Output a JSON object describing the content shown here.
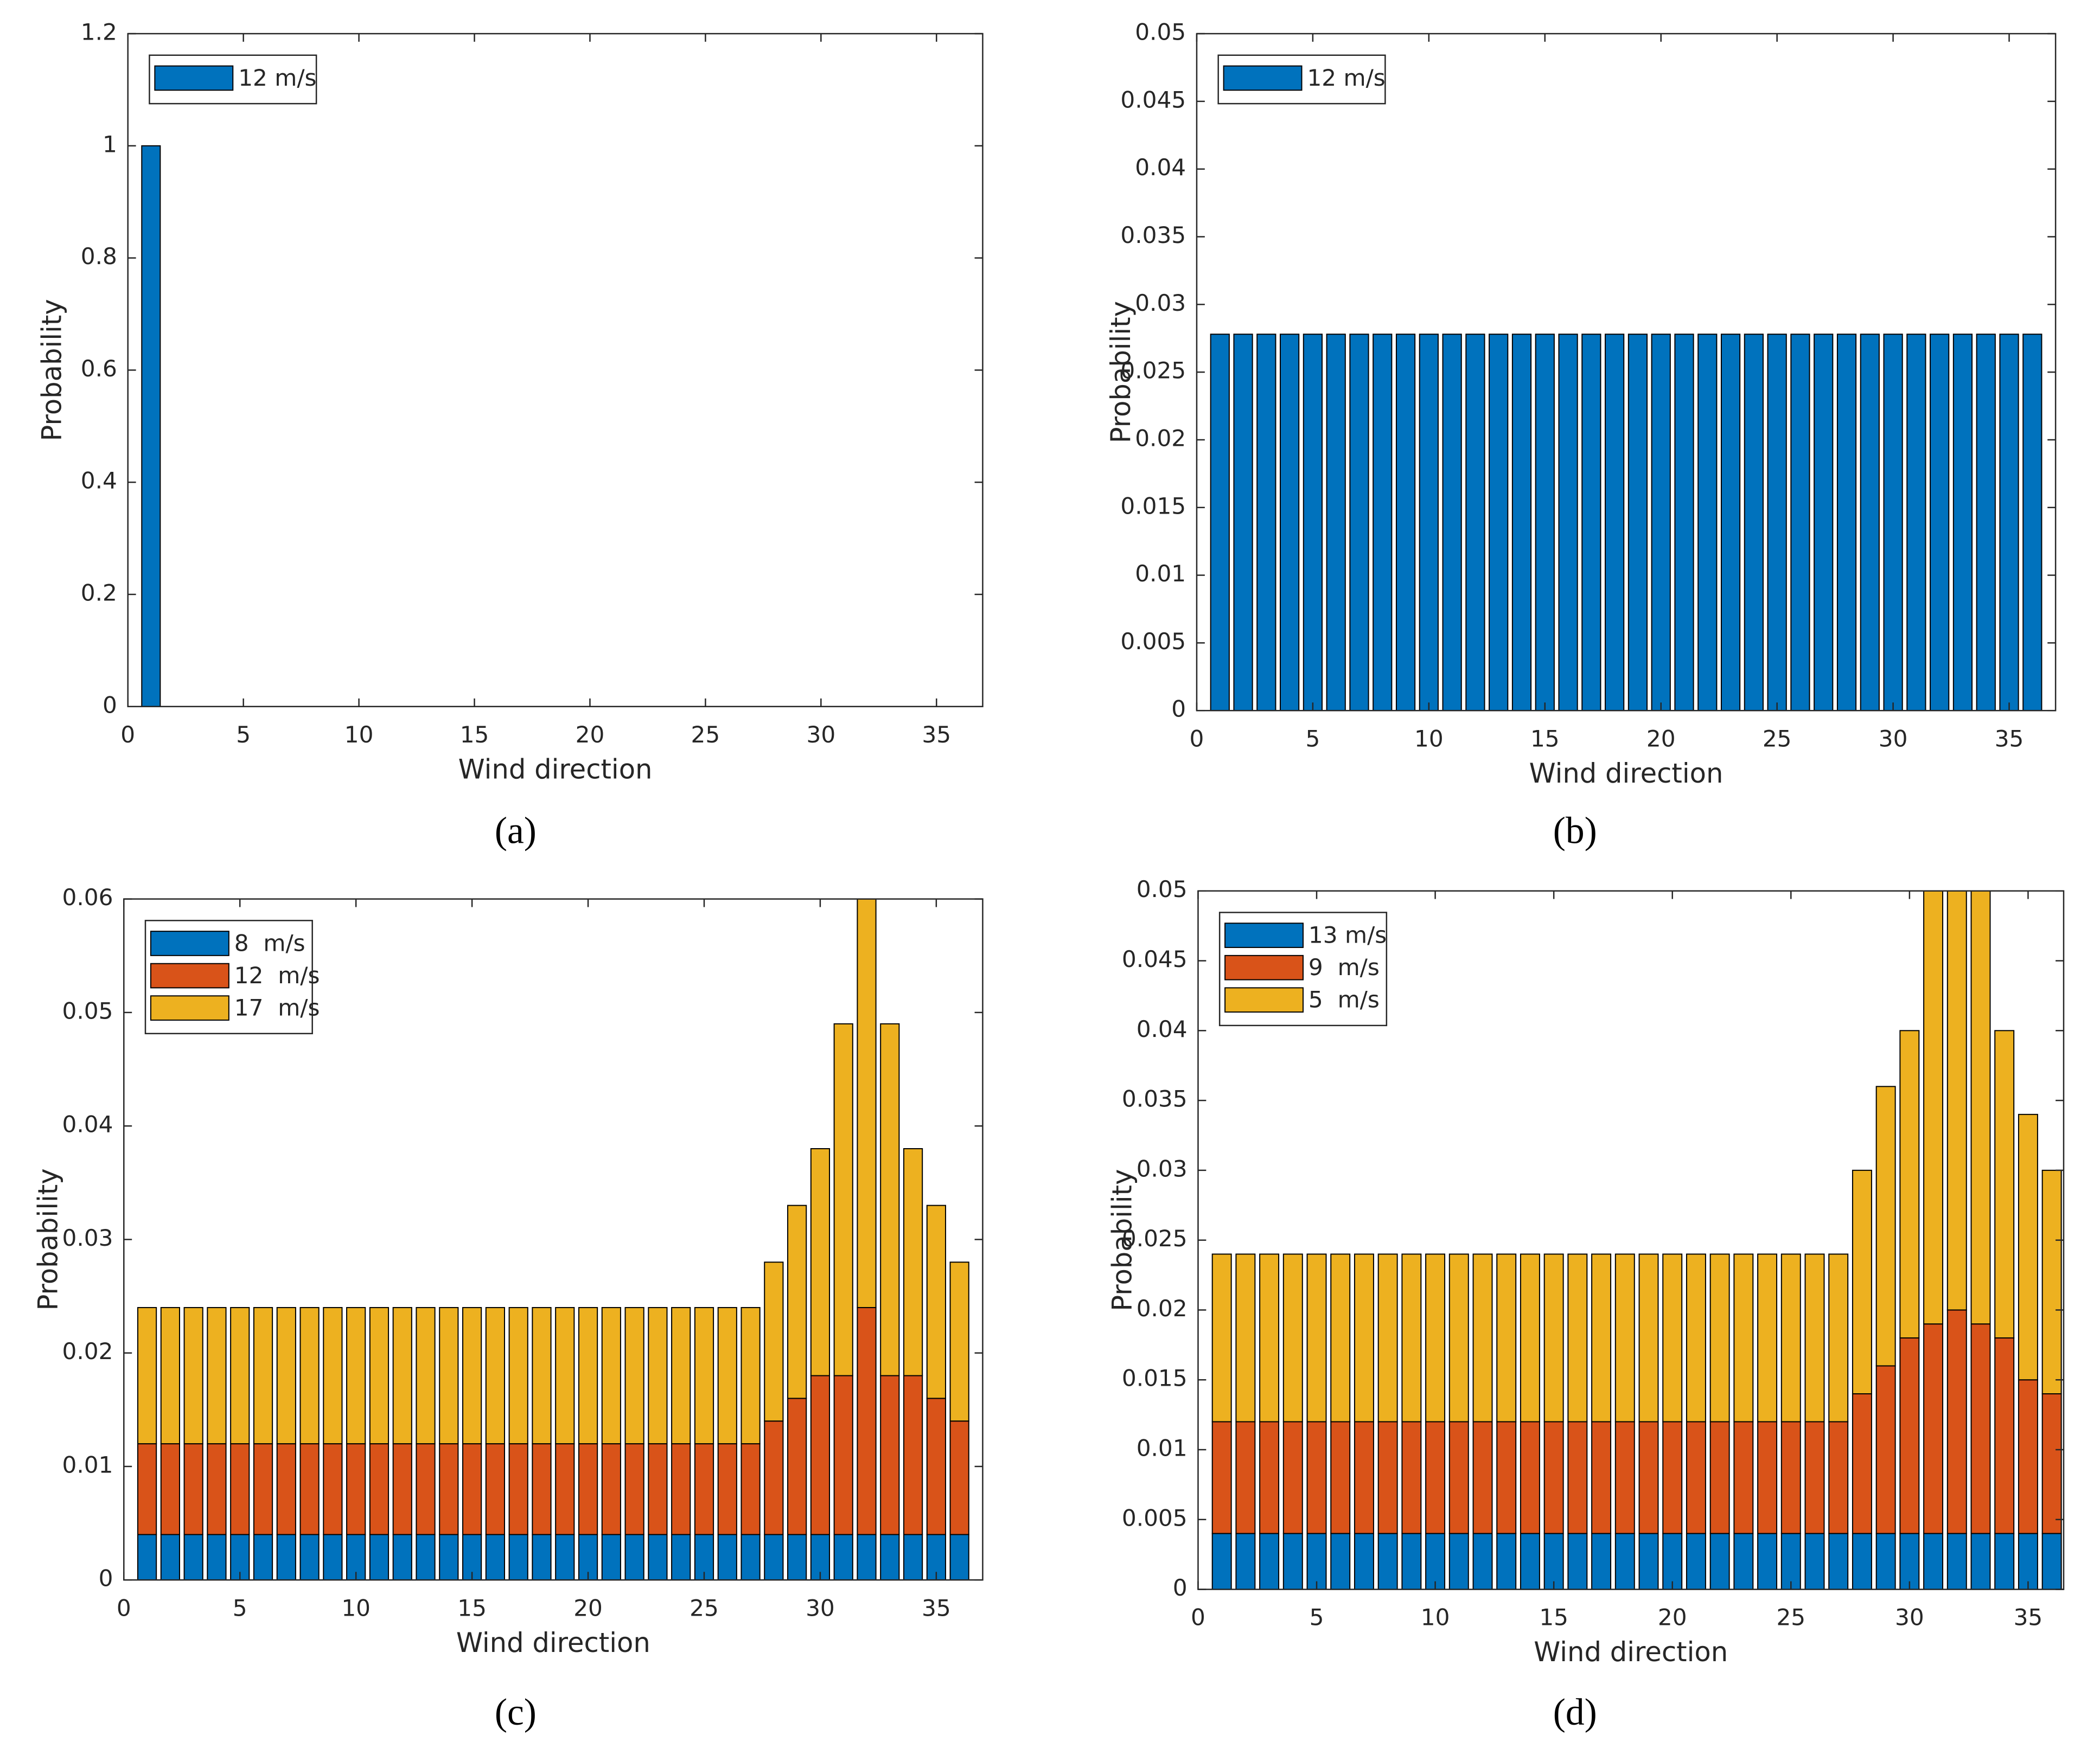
{
  "chart_data": [
    {
      "type": "bar",
      "stacked": true,
      "caption": "(a)",
      "xlabel": "Wind direction",
      "ylabel": "Probability",
      "x": [
        1,
        2,
        3,
        4,
        5,
        6,
        7,
        8,
        9,
        10,
        11,
        12,
        13,
        14,
        15,
        16,
        17,
        18,
        19,
        20,
        21,
        22,
        23,
        24,
        25,
        26,
        27,
        28,
        29,
        30,
        31,
        32,
        33,
        34,
        35,
        36
      ],
      "series": [
        {
          "name": "12 m/s",
          "color": "#0072BD",
          "values": [
            1,
            0,
            0,
            0,
            0,
            0,
            0,
            0,
            0,
            0,
            0,
            0,
            0,
            0,
            0,
            0,
            0,
            0,
            0,
            0,
            0,
            0,
            0,
            0,
            0,
            0,
            0,
            0,
            0,
            0,
            0,
            0,
            0,
            0,
            0,
            0
          ]
        }
      ],
      "xlim": [
        0,
        37
      ],
      "xticks": [
        0,
        5,
        10,
        15,
        20,
        25,
        30,
        35
      ],
      "ylim": [
        0,
        1.2
      ],
      "yticks": [
        0,
        0.2,
        0.4,
        0.6,
        0.8,
        1,
        1.2
      ],
      "legend": "upper left"
    },
    {
      "type": "bar",
      "stacked": true,
      "caption": "(b)",
      "xlabel": "Wind direction",
      "ylabel": "Probability",
      "x": [
        1,
        2,
        3,
        4,
        5,
        6,
        7,
        8,
        9,
        10,
        11,
        12,
        13,
        14,
        15,
        16,
        17,
        18,
        19,
        20,
        21,
        22,
        23,
        24,
        25,
        26,
        27,
        28,
        29,
        30,
        31,
        32,
        33,
        34,
        35,
        36
      ],
      "series": [
        {
          "name": "12 m/s",
          "color": "#0072BD",
          "values": [
            0.0278,
            0.0278,
            0.0278,
            0.0278,
            0.0278,
            0.0278,
            0.0278,
            0.0278,
            0.0278,
            0.0278,
            0.0278,
            0.0278,
            0.0278,
            0.0278,
            0.0278,
            0.0278,
            0.0278,
            0.0278,
            0.0278,
            0.0278,
            0.0278,
            0.0278,
            0.0278,
            0.0278,
            0.0278,
            0.0278,
            0.0278,
            0.0278,
            0.0278,
            0.0278,
            0.0278,
            0.0278,
            0.0278,
            0.0278,
            0.0278,
            0.0278
          ]
        }
      ],
      "xlim": [
        0,
        37
      ],
      "xticks": [
        0,
        5,
        10,
        15,
        20,
        25,
        30,
        35
      ],
      "ylim": [
        0,
        0.05
      ],
      "yticks": [
        0,
        0.005,
        0.01,
        0.015,
        0.02,
        0.025,
        0.03,
        0.035,
        0.04,
        0.045,
        0.05
      ],
      "legend": "upper left"
    },
    {
      "type": "bar",
      "stacked": true,
      "caption": "(c)",
      "xlabel": "Wind direction",
      "ylabel": "Probability",
      "x": [
        1,
        2,
        3,
        4,
        5,
        6,
        7,
        8,
        9,
        10,
        11,
        12,
        13,
        14,
        15,
        16,
        17,
        18,
        19,
        20,
        21,
        22,
        23,
        24,
        25,
        26,
        27,
        28,
        29,
        30,
        31,
        32,
        33,
        34,
        35,
        36
      ],
      "series": [
        {
          "name": "8  m/s",
          "color": "#0072BD",
          "values": [
            0.004,
            0.004,
            0.004,
            0.004,
            0.004,
            0.004,
            0.004,
            0.004,
            0.004,
            0.004,
            0.004,
            0.004,
            0.004,
            0.004,
            0.004,
            0.004,
            0.004,
            0.004,
            0.004,
            0.004,
            0.004,
            0.004,
            0.004,
            0.004,
            0.004,
            0.004,
            0.004,
            0.004,
            0.004,
            0.004,
            0.004,
            0.004,
            0.004,
            0.004,
            0.004,
            0.004
          ]
        },
        {
          "name": "12  m/s",
          "color": "#D95319",
          "values": [
            0.008,
            0.008,
            0.008,
            0.008,
            0.008,
            0.008,
            0.008,
            0.008,
            0.008,
            0.008,
            0.008,
            0.008,
            0.008,
            0.008,
            0.008,
            0.008,
            0.008,
            0.008,
            0.008,
            0.008,
            0.008,
            0.008,
            0.008,
            0.008,
            0.008,
            0.008,
            0.008,
            0.01,
            0.012,
            0.014,
            0.014,
            0.02,
            0.014,
            0.014,
            0.012,
            0.01
          ]
        },
        {
          "name": "17  m/s",
          "color": "#EDB120",
          "values": [
            0.012,
            0.012,
            0.012,
            0.012,
            0.012,
            0.012,
            0.012,
            0.012,
            0.012,
            0.012,
            0.012,
            0.012,
            0.012,
            0.012,
            0.012,
            0.012,
            0.012,
            0.012,
            0.012,
            0.012,
            0.012,
            0.012,
            0.012,
            0.012,
            0.012,
            0.012,
            0.012,
            0.014,
            0.017,
            0.02,
            0.031,
            0.036,
            0.031,
            0.02,
            0.017,
            0.014
          ]
        }
      ],
      "xlim": [
        0,
        37
      ],
      "xticks": [
        0,
        5,
        10,
        15,
        20,
        25,
        30,
        35
      ],
      "ylim": [
        0,
        0.06
      ],
      "yticks": [
        0,
        0.01,
        0.02,
        0.03,
        0.04,
        0.05,
        0.06
      ],
      "legend": "upper left"
    },
    {
      "type": "bar",
      "stacked": true,
      "caption": "(d)",
      "xlabel": "Wind direction",
      "ylabel": "Probability",
      "x": [
        1,
        2,
        3,
        4,
        5,
        6,
        7,
        8,
        9,
        10,
        11,
        12,
        13,
        14,
        15,
        16,
        17,
        18,
        19,
        20,
        21,
        22,
        23,
        24,
        25,
        26,
        27,
        28,
        29,
        30,
        31,
        32,
        33,
        34,
        35,
        36
      ],
      "series": [
        {
          "name": "13 m/s",
          "color": "#0072BD",
          "values": [
            0.004,
            0.004,
            0.004,
            0.004,
            0.004,
            0.004,
            0.004,
            0.004,
            0.004,
            0.004,
            0.004,
            0.004,
            0.004,
            0.004,
            0.004,
            0.004,
            0.004,
            0.004,
            0.004,
            0.004,
            0.004,
            0.004,
            0.004,
            0.004,
            0.004,
            0.004,
            0.004,
            0.004,
            0.004,
            0.004,
            0.004,
            0.004,
            0.004,
            0.004,
            0.004,
            0.004
          ]
        },
        {
          "name": "9  m/s",
          "color": "#D95319",
          "values": [
            0.008,
            0.008,
            0.008,
            0.008,
            0.008,
            0.008,
            0.008,
            0.008,
            0.008,
            0.008,
            0.008,
            0.008,
            0.008,
            0.008,
            0.008,
            0.008,
            0.008,
            0.008,
            0.008,
            0.008,
            0.008,
            0.008,
            0.008,
            0.008,
            0.008,
            0.008,
            0.008,
            0.01,
            0.012,
            0.014,
            0.015,
            0.016,
            0.015,
            0.014,
            0.011,
            0.01
          ]
        },
        {
          "name": "5  m/s",
          "color": "#EDB120",
          "values": [
            0.012,
            0.012,
            0.012,
            0.012,
            0.012,
            0.012,
            0.012,
            0.012,
            0.012,
            0.012,
            0.012,
            0.012,
            0.012,
            0.012,
            0.012,
            0.012,
            0.012,
            0.012,
            0.012,
            0.012,
            0.012,
            0.012,
            0.012,
            0.012,
            0.012,
            0.012,
            0.012,
            0.016,
            0.02,
            0.022,
            0.031,
            0.03,
            0.031,
            0.022,
            0.019,
            0.016
          ]
        }
      ],
      "xlim": [
        0,
        36.5
      ],
      "xticks": [
        0,
        5,
        10,
        15,
        20,
        25,
        30,
        35
      ],
      "ylim": [
        0,
        0.05
      ],
      "yticks": [
        0,
        0.005,
        0.01,
        0.015,
        0.02,
        0.025,
        0.03,
        0.035,
        0.04,
        0.045,
        0.05
      ],
      "legend": "upper left"
    }
  ]
}
